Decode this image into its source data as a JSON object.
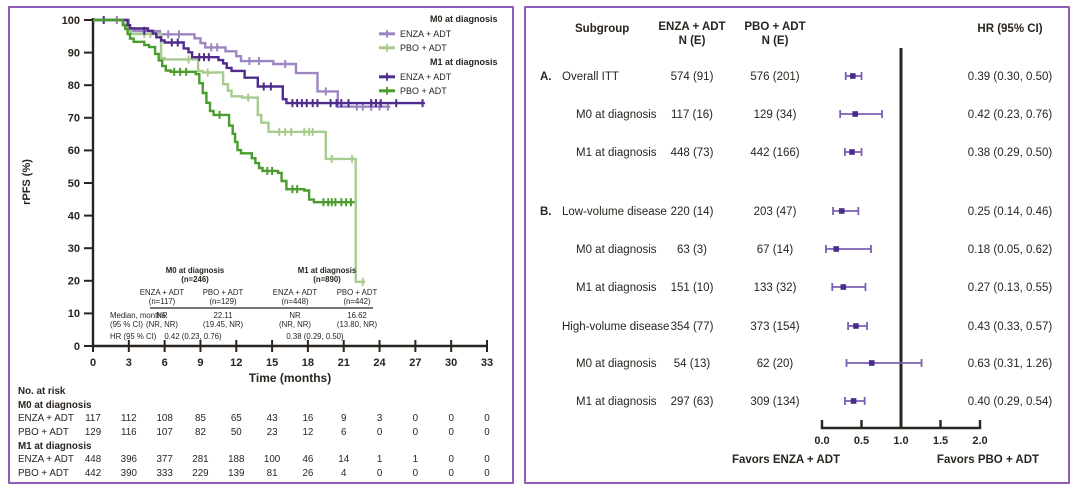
{
  "figure": {
    "panel_border_color": "#8f5db8",
    "text_color": "#29241f"
  },
  "chart_data": [
    {
      "type": "line",
      "subtype": "kaplan-meier",
      "xlabel": "Time (months)",
      "ylabel": "rPFS (%)",
      "xlim": [
        0,
        33
      ],
      "xticks": [
        0,
        3,
        6,
        9,
        12,
        15,
        18,
        21,
        24,
        27,
        30,
        33
      ],
      "ylim": [
        0,
        100
      ],
      "yticks": [
        0,
        10,
        20,
        30,
        40,
        50,
        60,
        70,
        80,
        90,
        100
      ],
      "grid": false,
      "legend_position": "top-right",
      "legend": [
        {
          "header": "M0 at diagnosis",
          "entries": [
            {
              "label": "ENZA + ADT",
              "color": "#9d85c2"
            },
            {
              "label": "PBO + ADT",
              "color": "#a8cb8f"
            }
          ]
        },
        {
          "header": "M1 at diagnosis",
          "entries": [
            {
              "label": "ENZA + ADT",
              "color": "#4f2c8c"
            },
            {
              "label": "PBO + ADT",
              "color": "#4b9c2e"
            }
          ]
        }
      ],
      "series": [
        {
          "name": "M0 ENZA + ADT",
          "color": "#9d85c2",
          "end": 24.9,
          "drops": [
            [
              0,
              100
            ],
            [
              3.0,
              97.5
            ],
            [
              3.4,
              96.6
            ],
            [
              5.6,
              95.6
            ],
            [
              8.5,
              94.4
            ],
            [
              9.0,
              92.9
            ],
            [
              9.4,
              91.6
            ],
            [
              11.1,
              90.4
            ],
            [
              12.0,
              88.9
            ],
            [
              12.4,
              87.4
            ],
            [
              15.1,
              86.5
            ],
            [
              17.0,
              83.7
            ],
            [
              18.8,
              78.1
            ],
            [
              20.5,
              73.4
            ]
          ],
          "censors": [
            [
              2.0,
              100
            ],
            [
              4.2,
              96.6
            ],
            [
              6.3,
              95.6
            ],
            [
              7.2,
              95.6
            ],
            [
              9.9,
              91.6
            ],
            [
              10.4,
              91.6
            ],
            [
              13.1,
              87.4
            ],
            [
              13.9,
              87.4
            ],
            [
              16.1,
              86.5
            ],
            [
              19.5,
              78.1
            ],
            [
              22.1,
              73.4
            ],
            [
              22.6,
              73.4
            ],
            [
              23.3,
              73.4
            ],
            [
              24.0,
              73.4
            ],
            [
              24.7,
              73.4
            ]
          ]
        },
        {
          "name": "M0 PBO + ADT",
          "color": "#a8cb8f",
          "end": 22.8,
          "drops": [
            [
              0,
              100
            ],
            [
              2.6,
              98.2
            ],
            [
              2.9,
              96.6
            ],
            [
              3.2,
              95.7
            ],
            [
              5.7,
              88.3
            ],
            [
              6.0,
              87.9
            ],
            [
              8.8,
              84.4
            ],
            [
              9.2,
              83.9
            ],
            [
              10.9,
              80.3
            ],
            [
              11.3,
              78.3
            ],
            [
              11.6,
              76.6
            ],
            [
              12.5,
              76.2
            ],
            [
              13.8,
              70.9
            ],
            [
              14.1,
              68.5
            ],
            [
              14.7,
              65.7
            ],
            [
              19.5,
              57.4
            ],
            [
              22.0,
              19.7
            ]
          ],
          "censors": [
            [
              4.3,
              95.7
            ],
            [
              4.8,
              95.7
            ],
            [
              8.0,
              87.9
            ],
            [
              9.6,
              83.9
            ],
            [
              13.0,
              76.2
            ],
            [
              15.6,
              65.7
            ],
            [
              16.1,
              65.7
            ],
            [
              16.6,
              65.7
            ],
            [
              17.7,
              65.7
            ],
            [
              18.1,
              65.7
            ],
            [
              18.4,
              65.7
            ],
            [
              20.0,
              57.4
            ],
            [
              21.7,
              57.4
            ],
            [
              22.6,
              19.7
            ]
          ]
        },
        {
          "name": "M1 ENZA + ADT",
          "color": "#4f2c8c",
          "end": 27.8,
          "drops": [
            [
              0,
              100
            ],
            [
              2.9,
              98.4
            ],
            [
              3.1,
              97.4
            ],
            [
              4.6,
              96.7
            ],
            [
              5.0,
              95.9
            ],
            [
              5.3,
              94.7
            ],
            [
              5.7,
              93.7
            ],
            [
              6.0,
              93.1
            ],
            [
              7.6,
              91.3
            ],
            [
              8.0,
              90.1
            ],
            [
              8.3,
              88.6
            ],
            [
              10.5,
              87.7
            ],
            [
              10.9,
              86.7
            ],
            [
              11.2,
              85.3
            ],
            [
              11.6,
              84.4
            ],
            [
              12.7,
              82.3
            ],
            [
              13.8,
              79.6
            ],
            [
              15.9,
              75.7
            ],
            [
              16.2,
              74.5
            ]
          ],
          "censors": [
            [
              0.9,
              100
            ],
            [
              4.3,
              96.7
            ],
            [
              6.6,
              93.1
            ],
            [
              7.1,
              93.1
            ],
            [
              8.9,
              88.6
            ],
            [
              9.3,
              88.6
            ],
            [
              9.7,
              88.6
            ],
            [
              14.3,
              79.6
            ],
            [
              14.9,
              79.6
            ],
            [
              16.7,
              74.5
            ],
            [
              17.1,
              74.5
            ],
            [
              17.5,
              74.5
            ],
            [
              17.9,
              74.5
            ],
            [
              18.4,
              74.5
            ],
            [
              18.8,
              74.5
            ],
            [
              19.9,
              74.5
            ],
            [
              20.4,
              74.5
            ],
            [
              20.8,
              74.5
            ],
            [
              21.4,
              74.5
            ],
            [
              23.3,
              74.5
            ],
            [
              23.7,
              74.5
            ],
            [
              24.1,
              74.5
            ],
            [
              25.4,
              74.5
            ],
            [
              27.6,
              74.5
            ]
          ]
        },
        {
          "name": "M1 PBO + ADT",
          "color": "#4b9c2e",
          "end": 21.9,
          "drops": [
            [
              0,
              100
            ],
            [
              2.5,
              98.5
            ],
            [
              2.7,
              97.2
            ],
            [
              2.9,
              95.7
            ],
            [
              3.1,
              94.3
            ],
            [
              3.4,
              93.3
            ],
            [
              4.3,
              92.3
            ],
            [
              4.7,
              91.7
            ],
            [
              5.2,
              89.6
            ],
            [
              5.5,
              87.6
            ],
            [
              5.8,
              85.9
            ],
            [
              6.1,
              84.5
            ],
            [
              6.5,
              84.1
            ],
            [
              8.6,
              83.4
            ],
            [
              8.9,
              80.6
            ],
            [
              9.2,
              77.6
            ],
            [
              9.5,
              74.6
            ],
            [
              9.8,
              72.1
            ],
            [
              10.1,
              70.9
            ],
            [
              11.4,
              67.6
            ],
            [
              11.7,
              65.1
            ],
            [
              11.9,
              62.6
            ],
            [
              12.1,
              60.1
            ],
            [
              12.4,
              59.1
            ],
            [
              13.3,
              57.6
            ],
            [
              13.6,
              56.1
            ],
            [
              13.9,
              54.6
            ],
            [
              14.2,
              53.7
            ],
            [
              15.5,
              53.1
            ],
            [
              15.8,
              50.6
            ],
            [
              16.2,
              48.1
            ],
            [
              17.7,
              47.7
            ],
            [
              18.1,
              44.9
            ],
            [
              18.5,
              44.1
            ]
          ],
          "censors": [
            [
              6.8,
              84.1
            ],
            [
              7.3,
              84.1
            ],
            [
              7.8,
              84.1
            ],
            [
              10.6,
              70.9
            ],
            [
              14.6,
              53.7
            ],
            [
              15.0,
              53.7
            ],
            [
              16.7,
              48.1
            ],
            [
              17.1,
              48.1
            ],
            [
              19.3,
              44.1
            ],
            [
              19.7,
              44.1
            ],
            [
              20.0,
              44.1
            ],
            [
              20.3,
              44.1
            ],
            [
              20.8,
              44.1
            ],
            [
              21.2,
              44.1
            ],
            [
              21.6,
              44.1
            ]
          ]
        }
      ],
      "inset_table": {
        "groups": [
          {
            "header": "M0 at diagnosis",
            "n": "(n=246)",
            "cols": [
              {
                "h1": "ENZA + ADT",
                "h2": "(n=117)"
              },
              {
                "h1": "PBO + ADT",
                "h2": "(n=129)"
              }
            ],
            "hr": "0.42 (0.23, 0.76)"
          },
          {
            "header": "M1 at diagnosis",
            "n": "(n=890)",
            "cols": [
              {
                "h1": "ENZA + ADT",
                "h2": "(n=448)"
              },
              {
                "h1": "PBO + ADT",
                "h2": "(n=442)"
              }
            ],
            "hr": "0.38 (0.29, 0.50)"
          }
        ],
        "median_label": [
          "Median, months",
          "(95 % CI)"
        ],
        "hr_label": "HR (95 % CI)",
        "medians": [
          [
            "NR",
            "(NR, NR)"
          ],
          [
            "22.11",
            "(19.45, NR)"
          ],
          [
            "NR",
            "(NR, NR)"
          ],
          [
            "16.62",
            "(13.80, NR)"
          ]
        ]
      },
      "risk_table": {
        "title": "No. at risk",
        "groups": [
          {
            "label": "M0 at diagnosis",
            "rows": [
              {
                "label": "ENZA + ADT",
                "values": [
                  117,
                  112,
                  108,
                  85,
                  65,
                  43,
                  16,
                  9,
                  3,
                  0,
                  0,
                  0
                ]
              },
              {
                "label": "PBO + ADT",
                "values": [
                  129,
                  116,
                  107,
                  82,
                  50,
                  23,
                  12,
                  6,
                  0,
                  0,
                  0,
                  0
                ]
              }
            ]
          },
          {
            "label": "M1 at diagnosis",
            "rows": [
              {
                "label": "ENZA + ADT",
                "values": [
                  448,
                  396,
                  377,
                  281,
                  188,
                  100,
                  46,
                  14,
                  1,
                  1,
                  0,
                  0
                ]
              },
              {
                "label": "PBO + ADT",
                "values": [
                  442,
                  390,
                  333,
                  229,
                  139,
                  81,
                  26,
                  4,
                  0,
                  0,
                  0,
                  0
                ]
              }
            ]
          }
        ]
      }
    },
    {
      "type": "forest",
      "headers": {
        "subgroup": "Subgroup",
        "enza_line1": "ENZA + ADT",
        "enza_line2": "N (E)",
        "pbo_line1": "PBO + ADT",
        "pbo_line2": "N (E)",
        "hr": "HR (95% CI)"
      },
      "marker_color": "#4a2b8d",
      "whisker_color": "#7b5fb2",
      "rows": [
        {
          "letter": "A.",
          "label": "Overall ITT",
          "indent": 0,
          "enza": "574 (91)",
          "pbo": "576 (201)",
          "hr": 0.39,
          "lo": 0.3,
          "hi": 0.5,
          "hr_text": "0.39 (0.30, 0.50)"
        },
        {
          "letter": "",
          "label": "M0 at diagnosis",
          "indent": 1,
          "enza": "117 (16)",
          "pbo": "129 (34)",
          "hr": 0.42,
          "lo": 0.23,
          "hi": 0.76,
          "hr_text": "0.42 (0.23, 0.76)"
        },
        {
          "letter": "",
          "label": "M1 at diagnosis",
          "indent": 1,
          "enza": "448 (73)",
          "pbo": "442 (166)",
          "hr": 0.38,
          "lo": 0.29,
          "hi": 0.5,
          "hr_text": "0.38 (0.29, 0.50)"
        },
        {
          "letter": "B.",
          "label": "Low-volume disease",
          "indent": 0,
          "enza": "220 (14)",
          "pbo": "203 (47)",
          "hr": 0.25,
          "lo": 0.14,
          "hi": 0.46,
          "hr_text": "0.25 (0.14, 0.46)"
        },
        {
          "letter": "",
          "label": "M0 at diagnosis",
          "indent": 1,
          "enza": "63 (3)",
          "pbo": "67 (14)",
          "hr": 0.18,
          "lo": 0.05,
          "hi": 0.62,
          "hr_text": "0.18 (0.05, 0.62)"
        },
        {
          "letter": "",
          "label": "M1 at diagnosis",
          "indent": 1,
          "enza": "151 (10)",
          "pbo": "133 (32)",
          "hr": 0.27,
          "lo": 0.13,
          "hi": 0.55,
          "hr_text": "0.27 (0.13, 0.55)"
        },
        {
          "letter": "",
          "label": "High-volume disease",
          "indent": 0,
          "enza": "354 (77)",
          "pbo": "373 (154)",
          "hr": 0.43,
          "lo": 0.33,
          "hi": 0.57,
          "hr_text": "0.43 (0.33, 0.57)"
        },
        {
          "letter": "",
          "label": "M0 at diagnosis",
          "indent": 1,
          "enza": "54 (13)",
          "pbo": "62 (20)",
          "hr": 0.63,
          "lo": 0.31,
          "hi": 1.26,
          "hr_text": "0.63 (0.31, 1.26)"
        },
        {
          "letter": "",
          "label": "M1 at diagnosis",
          "indent": 1,
          "enza": "297 (63)",
          "pbo": "309 (134)",
          "hr": 0.4,
          "lo": 0.29,
          "hi": 0.54,
          "hr_text": "0.40 (0.29, 0.54)"
        }
      ],
      "axis": {
        "ticks": [
          "0.0",
          "0.5",
          "1.0",
          "1.5",
          "2.0"
        ],
        "tick_values": [
          0,
          0.5,
          1.0,
          1.5,
          2.0
        ],
        "ref_line": 1.0,
        "xlim": [
          0,
          2
        ]
      },
      "favors_left": "Favors ENZA + ADT",
      "favors_right": "Favors PBO + ADT"
    }
  ]
}
